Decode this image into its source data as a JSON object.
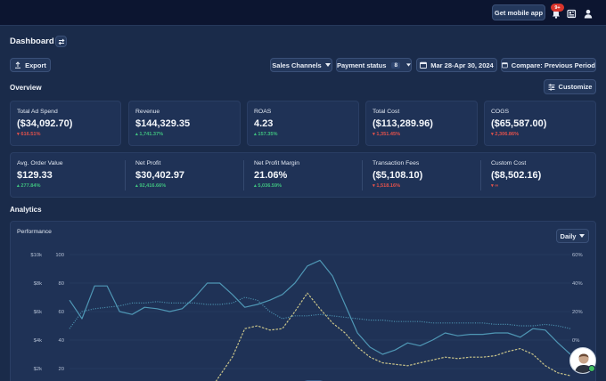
{
  "topbar": {
    "mobile_button": "Get mobile app",
    "notification_badge": "9+"
  },
  "page": {
    "title": "Dashboard"
  },
  "toolbar": {
    "export_label": "Export",
    "sales_channels_label": "Sales Channels",
    "payment_status_label": "Payment status",
    "payment_status_count": "8",
    "date_range_label": "Mar 28-Apr 30, 2024",
    "compare_label": "Compare: Previous Period"
  },
  "overview": {
    "heading": "Overview",
    "customize_label": "Customize",
    "row1": [
      {
        "label": "Total Ad Spend",
        "value": "($34,092.70)",
        "change": "616.51%",
        "trend": "down"
      },
      {
        "label": "Revenue",
        "value": "$144,329.35",
        "change": "1,741.37%",
        "trend": "up"
      },
      {
        "label": "ROAS",
        "value": "4.23",
        "change": "157.35%",
        "trend": "up"
      },
      {
        "label": "Total Cost",
        "value": "($113,289.96)",
        "change": "1,351.45%",
        "trend": "down"
      },
      {
        "label": "COGS",
        "value": "($65,587.00)",
        "change": "2,306.86%",
        "trend": "down"
      }
    ],
    "row2": [
      {
        "label": "Avg. Order Value",
        "value": "$129.33",
        "change": "277.84%",
        "trend": "up"
      },
      {
        "label": "Net Profit",
        "value": "$30,402.97",
        "change": "92,416.66%",
        "trend": "up"
      },
      {
        "label": "Net Profit Margin",
        "value": "21.06%",
        "change": "5,036.59%",
        "trend": "up"
      },
      {
        "label": "Transaction Fees",
        "value": "($5,108.10)",
        "change": "1,518.16%",
        "trend": "down"
      },
      {
        "label": "Custom Cost",
        "value": "($8,502.16)",
        "change": "∞",
        "trend": "down"
      }
    ]
  },
  "analytics": {
    "heading": "Analytics",
    "chart_title": "Performance",
    "period_label": "Daily"
  },
  "chart_data": {
    "type": "line",
    "title": "Performance",
    "y_left1_ticks": [
      "$10k",
      "$8k",
      "$6k",
      "$4k",
      "$2k"
    ],
    "y_left2_ticks": [
      "100",
      "80",
      "60",
      "40",
      "20"
    ],
    "y_right_ticks": [
      "60%",
      "40%",
      "20%",
      "0%",
      "-20%"
    ],
    "grid": true,
    "series": [
      {
        "color": "#4f97b5",
        "style": "solid",
        "values": [
          68,
          55,
          78,
          78,
          60,
          58,
          63,
          62,
          60,
          62,
          70,
          80,
          80,
          72,
          63,
          65,
          68,
          72,
          80,
          92,
          96,
          85,
          65,
          45,
          35,
          30,
          33,
          38,
          36,
          40,
          45,
          43,
          44,
          44,
          45,
          45,
          42,
          48,
          47,
          38,
          30
        ]
      },
      {
        "color": "#4f97b5",
        "style": "dotted",
        "values": [
          48,
          60,
          62,
          63,
          64,
          66,
          66,
          67,
          66,
          66,
          66,
          65,
          65,
          66,
          70,
          68,
          60,
          55,
          57,
          57,
          58,
          57,
          56,
          55,
          54,
          54,
          53,
          53,
          53,
          52,
          52,
          52,
          52,
          52,
          51,
          51,
          50,
          50,
          51,
          50,
          48
        ]
      },
      {
        "color": "#c9c48a",
        "style": "dashed",
        "values": [
          0,
          0,
          0,
          0,
          0,
          0,
          0,
          0,
          0,
          0,
          0,
          2,
          15,
          28,
          48,
          50,
          47,
          48,
          60,
          73,
          62,
          52,
          45,
          35,
          28,
          24,
          23,
          22,
          24,
          26,
          28,
          27,
          28,
          28,
          29,
          32,
          34,
          30,
          22,
          17,
          15
        ]
      },
      {
        "color": "#6aa8e8",
        "style": "solid",
        "values": [
          0,
          0,
          0,
          0,
          0,
          0,
          0,
          0,
          0,
          0,
          0,
          0,
          0,
          0,
          3,
          6,
          8,
          9,
          10,
          11,
          11,
          10,
          9,
          8,
          7,
          6,
          6,
          6,
          6,
          7,
          7,
          7,
          8,
          8,
          9,
          9,
          9,
          8,
          7,
          5,
          3
        ]
      }
    ]
  }
}
